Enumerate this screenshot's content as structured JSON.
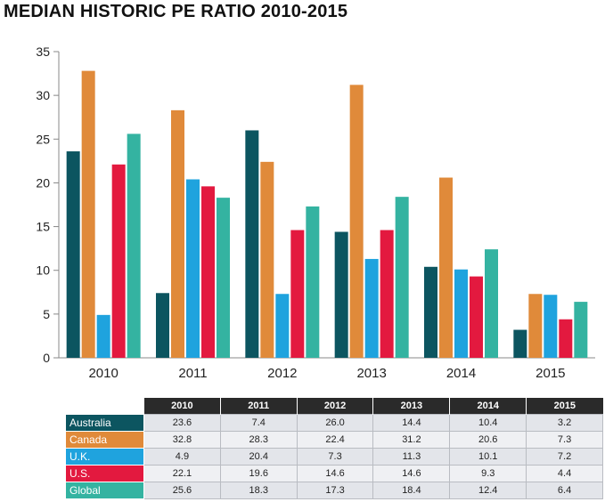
{
  "chart_data": {
    "type": "bar",
    "title": "MEDIAN HISTORIC PE RATIO 2010-2015",
    "xlabel": "",
    "ylabel": "",
    "categories": [
      "2010",
      "2011",
      "2012",
      "2013",
      "2014",
      "2015"
    ],
    "ylim": [
      0,
      35
    ],
    "yticks": [
      0,
      5,
      10,
      15,
      20,
      25,
      30,
      35
    ],
    "grid": false,
    "series": [
      {
        "name": "Australia",
        "color": "#0c5560",
        "values": [
          23.6,
          7.4,
          26.0,
          14.4,
          10.4,
          3.2
        ],
        "labels": [
          "23.6",
          "7.4",
          "26.0",
          "14.4",
          "10.4",
          "3.2"
        ]
      },
      {
        "name": "Canada",
        "color": "#e08a3a",
        "values": [
          32.8,
          28.3,
          22.4,
          31.2,
          20.6,
          7.3
        ],
        "labels": [
          "32.8",
          "28.3",
          "22.4",
          "31.2",
          "20.6",
          "7.3"
        ]
      },
      {
        "name": "U.K.",
        "color": "#1fa3de",
        "values": [
          4.9,
          20.4,
          7.3,
          11.3,
          10.1,
          7.2
        ],
        "labels": [
          "4.9",
          "20.4",
          "7.3",
          "11.3",
          "10.1",
          "7.2"
        ]
      },
      {
        "name": "U.S.",
        "color": "#e3193f",
        "values": [
          22.1,
          19.6,
          14.6,
          14.6,
          9.3,
          4.4
        ],
        "labels": [
          "22.1",
          "19.6",
          "14.6",
          "14.6",
          "9.3",
          "4.4"
        ]
      },
      {
        "name": "Global",
        "color": "#34b3a1",
        "values": [
          25.6,
          18.3,
          17.3,
          18.4,
          12.4,
          6.4
        ],
        "labels": [
          "25.6",
          "18.3",
          "17.3",
          "18.4",
          "12.4",
          "6.4"
        ]
      }
    ]
  },
  "colors": {
    "axis": "#888888",
    "table_header_bg": "#2a2a2a"
  }
}
